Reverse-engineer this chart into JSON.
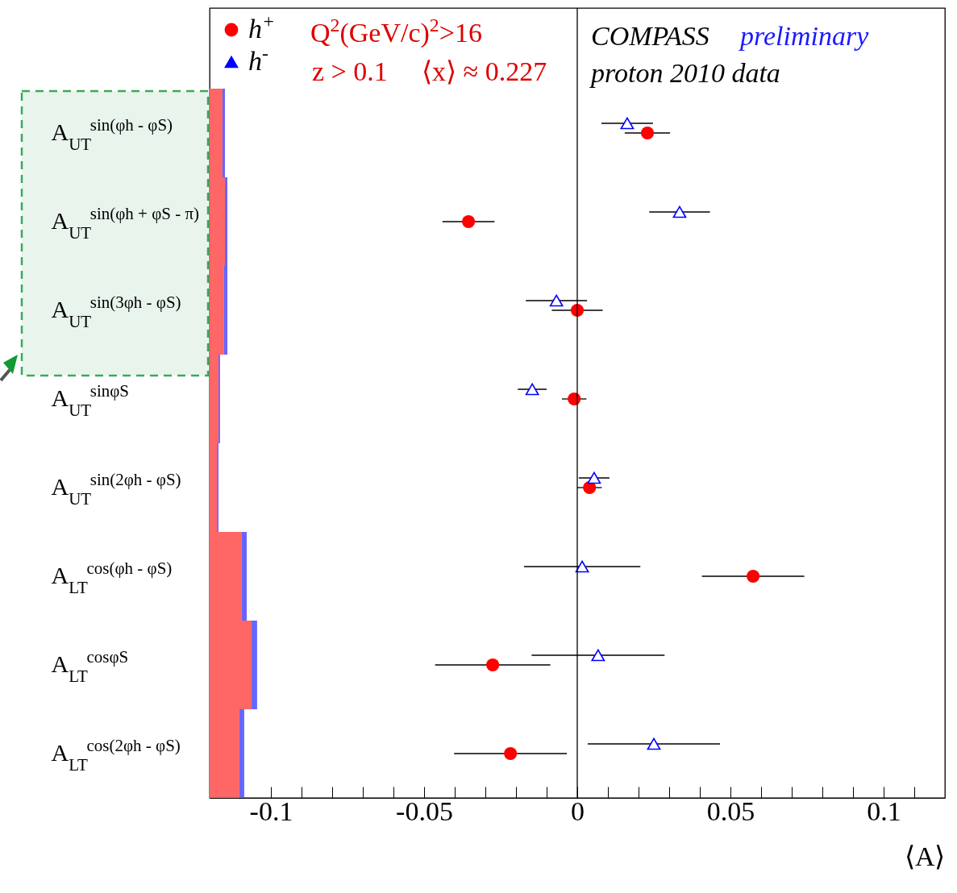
{
  "chart_data": {
    "type": "scatter",
    "orientation": "horizontal",
    "xlabel": "⟨A⟩",
    "categories": [
      "A$_{UT}$$^{sin(φh - φS)}$",
      "A$_{UT}$$^{sin(φh + φS - π)}$",
      "A$_{UT}$$^{sin(3φh - φS)}$",
      "A$_{UT}$$^{sinφS}$",
      "A$_{UT}$$^{sin(2φh - φS)}$",
      "A$_{LT}$$^{cos(φh - φS)}$",
      "A$_{LT}$$^{cosφS}$",
      "A$_{LT}$$^{cos(2φh - φS)}$"
    ],
    "series": [
      {
        "type": "bar",
        "color": "#ff6666",
        "base": [
          -0.12,
          -0.12,
          -0.12,
          -0.12,
          -0.12,
          -0.12,
          -0.12,
          -0.12
        ],
        "values": [
          0.0042,
          0.005,
          0.0047,
          0.0029,
          0.0024,
          0.0105,
          0.0137,
          0.0097
        ]
      },
      {
        "type": "bar",
        "color": "#6666ff",
        "base": [
          -0.1158,
          -0.115,
          -0.1153,
          -0.1171,
          -0.1176,
          -0.1095,
          -0.1063,
          -0.1103
        ],
        "values": [
          0.0008,
          0.0008,
          0.0011,
          0.0005,
          0.0005,
          0.0016,
          0.0018,
          0.0016
        ]
      },
      {
        "name": "h$^{+}$",
        "marker": "circle",
        "color": "#ff0000",
        "values": [
          0.0229,
          -0.0355,
          0.0,
          -0.001,
          0.004,
          0.0574,
          -0.0276,
          -0.0218
        ],
        "errors": [
          0.0074,
          0.0085,
          0.0083,
          0.004,
          0.004,
          0.0167,
          0.0188,
          0.0184
        ]
      },
      {
        "name": "h$^{-}$",
        "marker": "triangle",
        "color": "#0000ff",
        "values": [
          0.0163,
          0.0334,
          -0.0068,
          -0.0147,
          0.0055,
          0.0016,
          0.0068,
          0.025
        ],
        "errors": [
          0.0084,
          0.0099,
          0.01,
          0.0047,
          0.005,
          0.019,
          0.0217,
          0.0216
        ]
      }
    ],
    "xlim": [
      -0.12,
      0.12
    ],
    "xticks": [
      {
        "value": -0.11,
        "label": null
      },
      -0.1,
      {
        "value": -0.09,
        "label": null
      },
      {
        "value": -0.08,
        "label": null
      },
      {
        "value": -0.07,
        "label": null
      },
      {
        "value": -0.06,
        "label": null
      },
      -0.05,
      {
        "value": -0.04,
        "label": null
      },
      {
        "value": -0.03,
        "label": null
      },
      {
        "value": -0.02,
        "label": null
      },
      {
        "value": -0.01,
        "label": null
      },
      0,
      {
        "value": 0.01,
        "label": null
      },
      {
        "value": 0.02,
        "label": null
      },
      {
        "value": 0.03,
        "label": null
      },
      {
        "value": 0.04,
        "label": null
      },
      0.05,
      {
        "value": 0.06,
        "label": null
      },
      {
        "value": 0.07,
        "label": null
      },
      {
        "value": 0.08,
        "label": null
      },
      {
        "value": 0.09,
        "label": null
      },
      0.1,
      {
        "value": 0.11,
        "label": null
      }
    ],
    "ref_lines": [
      {
        "axis": "x",
        "value": 0,
        "color": "#000000",
        "line_style": "solid"
      }
    ],
    "annotations": [
      "Q$^{2}$(GeV/c)$^{2}$>16",
      "z > 0.1",
      "⟨x⟩ ≈ 0.227",
      "COMPASS",
      "preliminary",
      "proton 2010 data"
    ],
    "legend": "top left",
    "grid": false
  }
}
